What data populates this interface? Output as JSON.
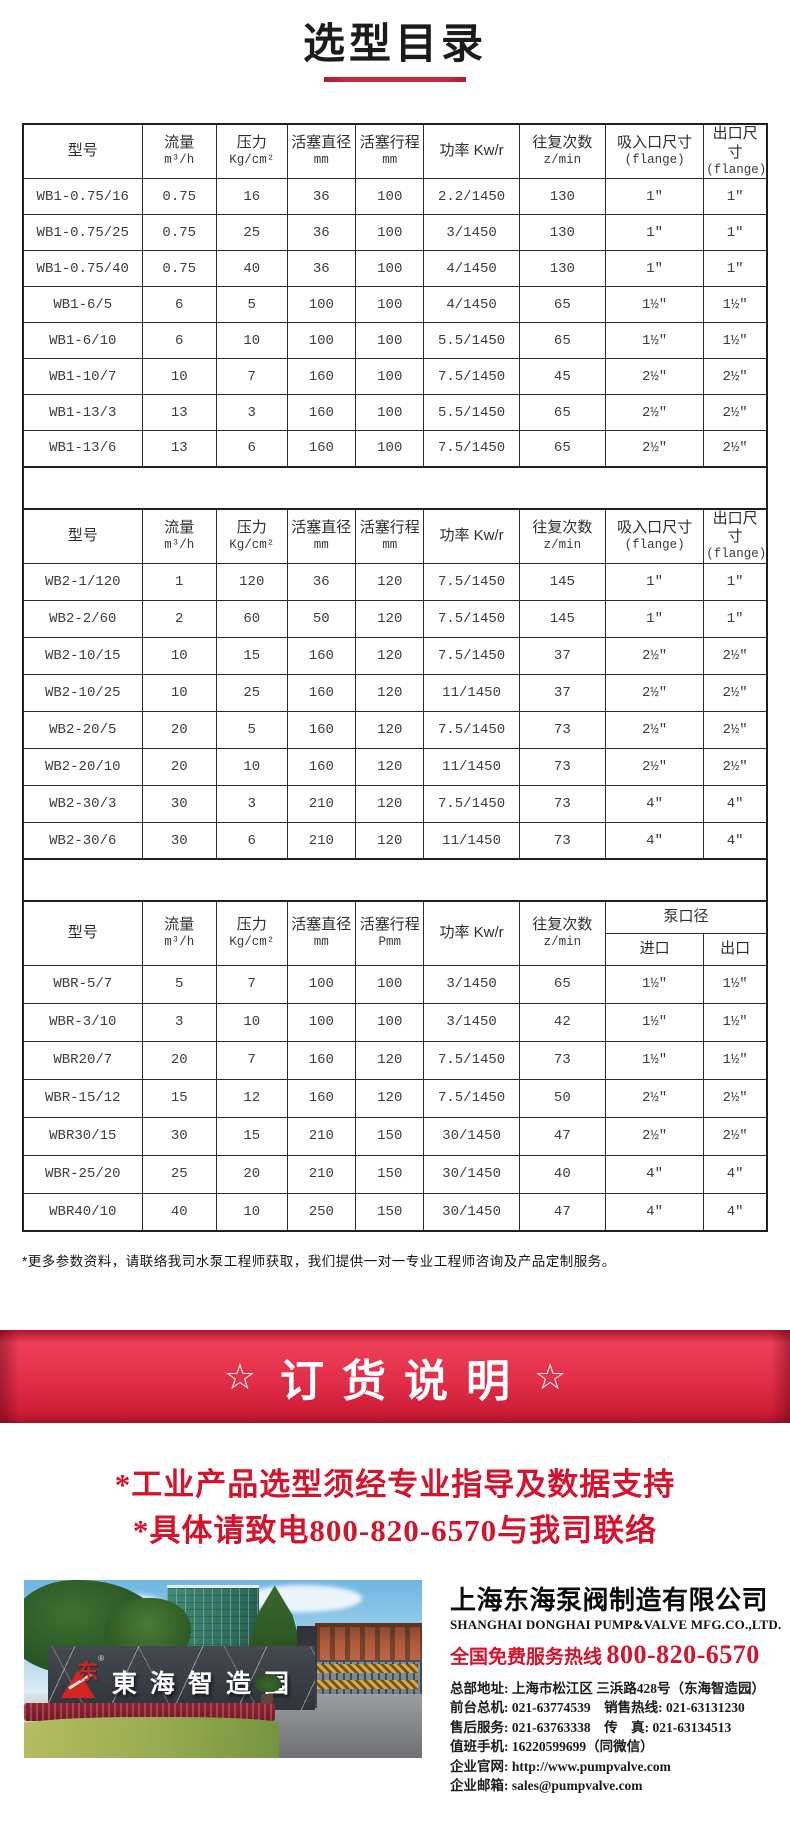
{
  "page": {
    "title": "选型目录",
    "footnote": "*更多参数资料，请联络我司水泵工程师获取，我们提供一对一专业工程师咨询及产品定制服务。"
  },
  "colors": {
    "accent_red": "#d6132d",
    "ribbon_red": "#e22e48",
    "underline_red": "#c5293a"
  },
  "ribbon": {
    "star_left": "☆",
    "text": "订货说明",
    "star_right": "☆"
  },
  "notices": [
    "*工业产品选型须经专业指导及数据支持",
    "*具体请致电800-820-6570与我司联络"
  ],
  "tables": [
    {
      "head": {
        "model": "型号",
        "flow_l1": "流量",
        "flow_l2": "m³/h",
        "press_l1": "压力",
        "press_l2": "Kg/cm²",
        "pd_l1": "活塞直径",
        "pd_l2": "mm",
        "ps_l1": "活塞行程",
        "ps_l2": "mm",
        "power": "功率 Kw/r",
        "recip_l1": "往复次数",
        "recip_l2": "z/min",
        "in_l1": "吸入口尺寸",
        "in_l2": "(flange)",
        "out_l1": "出口尺寸",
        "out_l2": "(flange)"
      },
      "rows": [
        [
          "WB1-0.75/16",
          "0.75",
          "16",
          "36",
          "100",
          "2.2/1450",
          "130",
          "1\"",
          "1\""
        ],
        [
          "WB1-0.75/25",
          "0.75",
          "25",
          "36",
          "100",
          "3/1450",
          "130",
          "1\"",
          "1\""
        ],
        [
          "WB1-0.75/40",
          "0.75",
          "40",
          "36",
          "100",
          "4/1450",
          "130",
          "1\"",
          "1\""
        ],
        [
          "WB1-6/5",
          "6",
          "5",
          "100",
          "100",
          "4/1450",
          "65",
          "1½\"",
          "1½\""
        ],
        [
          "WB1-6/10",
          "6",
          "10",
          "100",
          "100",
          "5.5/1450",
          "65",
          "1½\"",
          "1½\""
        ],
        [
          "WB1-10/7",
          "10",
          "7",
          "160",
          "100",
          "7.5/1450",
          "45",
          "2½\"",
          "2½\""
        ],
        [
          "WB1-13/3",
          "13",
          "3",
          "160",
          "100",
          "5.5/1450",
          "65",
          "2½\"",
          "2½\""
        ],
        [
          "WB1-13/6",
          "13",
          "6",
          "160",
          "100",
          "7.5/1450",
          "65",
          "2½\"",
          "2½\""
        ]
      ]
    },
    {
      "head": {
        "model": "型号",
        "flow_l1": "流量",
        "flow_l2": "m³/h",
        "press_l1": "压力",
        "press_l2": "Kg/cm²",
        "pd_l1": "活塞直径",
        "pd_l2": "mm",
        "ps_l1": "活塞行程",
        "ps_l2": "mm",
        "power": "功率 Kw/r",
        "recip_l1": "往复次数",
        "recip_l2": "z/min",
        "in_l1": "吸入口尺寸",
        "in_l2": "(flange)",
        "out_l1": "出口尺寸",
        "out_l2": "(flange)"
      },
      "rows": [
        [
          "WB2-1/120",
          "1",
          "120",
          "36",
          "120",
          "7.5/1450",
          "145",
          "1\"",
          "1\""
        ],
        [
          "WB2-2/60",
          "2",
          "60",
          "50",
          "120",
          "7.5/1450",
          "145",
          "1\"",
          "1\""
        ],
        [
          "WB2-10/15",
          "10",
          "15",
          "160",
          "120",
          "7.5/1450",
          "37",
          "2½\"",
          "2½\""
        ],
        [
          "WB2-10/25",
          "10",
          "25",
          "160",
          "120",
          "11/1450",
          "37",
          "2½\"",
          "2½\""
        ],
        [
          "WB2-20/5",
          "20",
          "5",
          "160",
          "120",
          "7.5/1450",
          "73",
          "2½\"",
          "2½\""
        ],
        [
          "WB2-20/10",
          "20",
          "10",
          "160",
          "120",
          "11/1450",
          "73",
          "2½\"",
          "2½\""
        ],
        [
          "WB2-30/3",
          "30",
          "3",
          "210",
          "120",
          "7.5/1450",
          "73",
          "4\"",
          "4\""
        ],
        [
          "WB2-30/6",
          "30",
          "6",
          "210",
          "120",
          "11/1450",
          "73",
          "4\"",
          "4\""
        ]
      ]
    },
    {
      "head": {
        "model": "型号",
        "flow_l1": "流量",
        "flow_l2": "m³/h",
        "press_l1": "压力",
        "press_l2": "Kg/cm²",
        "pd_l1": "活塞直径",
        "pd_l2": "mm",
        "ps_l1": "活塞行程",
        "ps_l2": "Pmm",
        "power": "功率 Kw/r",
        "recip_l1": "往复次数",
        "recip_l2": "z/min",
        "pump_bore": "泵口径",
        "inlet": "进口",
        "outlet": "出口"
      },
      "rows": [
        [
          "WBR-5/7",
          "5",
          "7",
          "100",
          "100",
          "3/1450",
          "65",
          "1½\"",
          "1½\""
        ],
        [
          "WBR-3/10",
          "3",
          "10",
          "100",
          "100",
          "3/1450",
          "42",
          "1½\"",
          "1½\""
        ],
        [
          "WBR20/7",
          "20",
          "7",
          "160",
          "120",
          "7.5/1450",
          "73",
          "1½\"",
          "1½\""
        ],
        [
          "WBR-15/12",
          "15",
          "12",
          "160",
          "120",
          "7.5/1450",
          "50",
          "2½\"",
          "2½\""
        ],
        [
          "WBR30/15",
          "30",
          "15",
          "210",
          "150",
          "30/1450",
          "47",
          "2½\"",
          "2½\""
        ],
        [
          "WBR-25/20",
          "25",
          "20",
          "210",
          "150",
          "30/1450",
          "40",
          "4\"",
          "4\""
        ],
        [
          "WBR40/10",
          "40",
          "10",
          "250",
          "150",
          "30/1450",
          "47",
          "4\"",
          "4\""
        ]
      ]
    }
  ],
  "photo": {
    "sign_text": "東海智造园",
    "logo_glyph": "东",
    "logo_reg": "®"
  },
  "company": {
    "name_cn": "上海东海泵阀制造有限公司",
    "name_en": "SHANGHAI DONGHAI PUMP&VALVE MFG.CO.,LTD.",
    "hotline_label": "全国免费服务热线",
    "hotline_number": "800-820-6570",
    "details": [
      "总部地址: 上海市松江区 三浜路428号（东海智造园）",
      "前台总机: 021-63774539　销售热线: 021-63131230",
      "售后服务: 021-63763338　传　真: 021-63134513",
      "值班手机: 16220599699（同微信）",
      "企业官网: http://www.pumpvalve.com",
      "企业邮箱: sales@pumpvalve.com"
    ]
  }
}
